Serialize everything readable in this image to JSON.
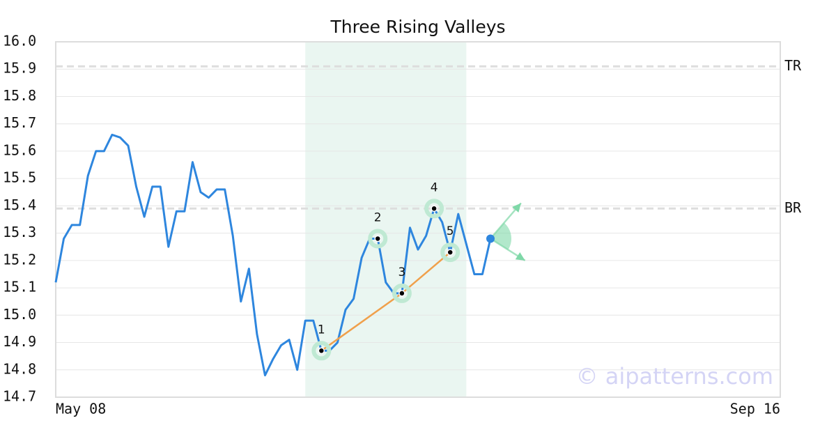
{
  "chart_data": {
    "type": "line",
    "title": "Three Rising Valleys",
    "watermark": "© aipatterns.com",
    "xlim": [
      0,
      90
    ],
    "xticks": [
      {
        "value": 0,
        "label": "May 08"
      },
      {
        "value": 90,
        "label": "Sep 16"
      }
    ],
    "ylim": [
      14.7,
      16.0
    ],
    "yticks": [
      {
        "value": 14.7,
        "label": "14.7"
      },
      14.8,
      14.9,
      {
        "value": 15,
        "label": "15.0"
      },
      15.1,
      15.2,
      15.3,
      15.4,
      15.5,
      15.6,
      15.7,
      15.8,
      15.9,
      {
        "value": 16,
        "label": "16.0"
      }
    ],
    "grid": true,
    "series": [
      {
        "color": "#2e86de",
        "x": [
          0,
          1,
          2,
          3,
          4,
          5,
          6,
          7,
          8,
          9,
          10,
          11,
          12,
          13,
          14,
          15,
          16,
          17,
          18,
          19,
          20,
          21,
          22,
          23,
          24,
          25,
          26,
          27,
          28,
          29,
          30,
          31,
          32,
          33,
          34,
          35,
          36,
          37,
          38,
          39,
          40,
          41,
          42,
          43,
          44,
          45,
          46,
          47,
          48,
          49,
          50,
          51,
          52,
          53,
          54
        ],
        "values": [
          15.12,
          15.28,
          15.33,
          15.33,
          15.51,
          15.6,
          15.6,
          15.66,
          15.65,
          15.62,
          15.47,
          15.36,
          15.47,
          15.47,
          15.25,
          15.38,
          15.38,
          15.56,
          15.45,
          15.43,
          15.46,
          15.46,
          15.29,
          15.05,
          15.17,
          14.93,
          14.78,
          14.84,
          14.89,
          14.91,
          14.8,
          14.98,
          14.98,
          14.87,
          14.87,
          14.9,
          15.02,
          15.06,
          15.21,
          15.28,
          15.28,
          15.12,
          15.08,
          15.08,
          15.32,
          15.24,
          15.29,
          15.39,
          15.34,
          15.23,
          15.37,
          15.26,
          15.15,
          15.15,
          15.28
        ]
      }
    ],
    "levels": [
      {
        "name": "TR",
        "value": 15.91
      },
      {
        "name": "BR",
        "value": 15.39
      }
    ],
    "highlight": [
      31,
      51
    ],
    "highlight_color": "#eaf6f1",
    "points": [
      {
        "label": "1",
        "x": 33,
        "y": 14.87
      },
      {
        "label": "2",
        "x": 40,
        "y": 15.28
      },
      {
        "label": "3",
        "x": 43,
        "y": 15.08
      },
      {
        "label": "4",
        "x": 47,
        "y": 15.39
      },
      {
        "label": "5",
        "x": 49,
        "y": 15.23
      }
    ],
    "trendline_color": "#f0a04b",
    "projection": {
      "x": 54,
      "y": 15.28,
      "up": [
        57.8,
        15.41
      ],
      "down": [
        58.3,
        15.2
      ],
      "color": "#7fd8a8"
    }
  }
}
